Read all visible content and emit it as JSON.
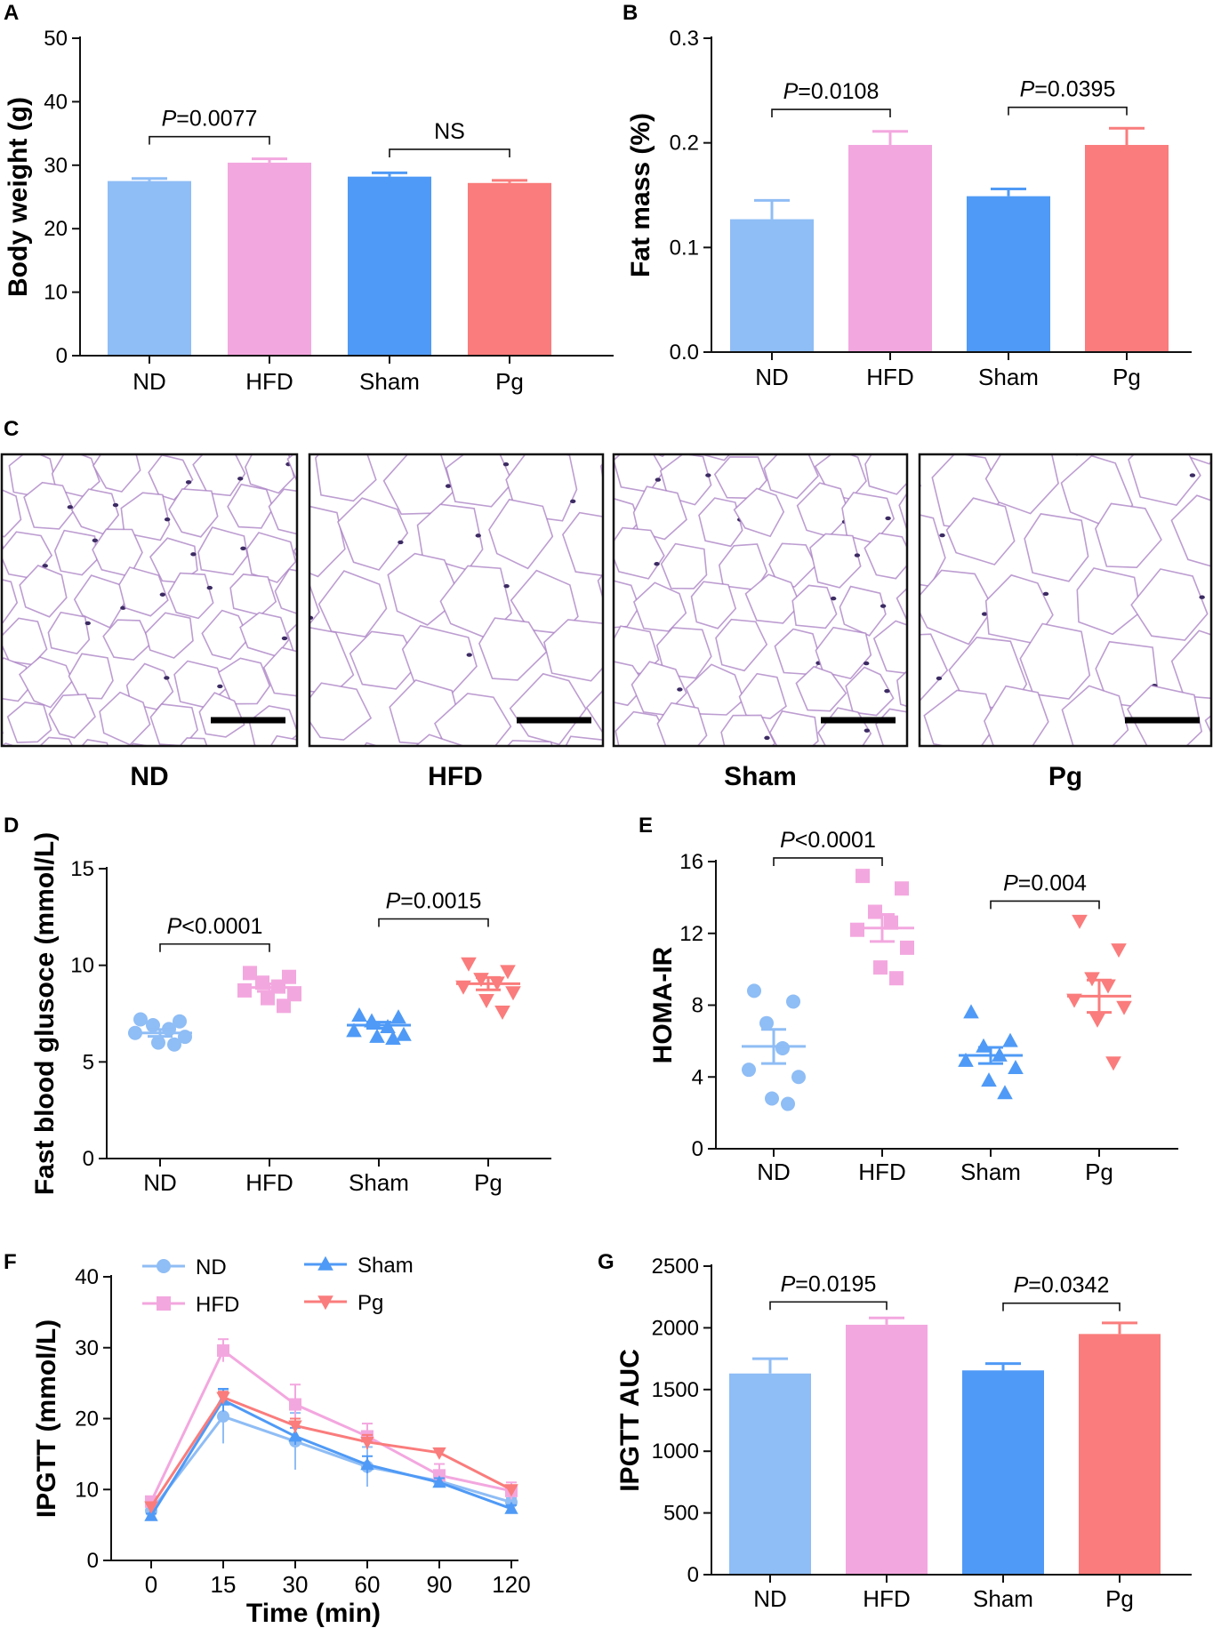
{
  "colors": {
    "ND": "#8fbdf5",
    "HFD": "#f3a7df",
    "Sham": "#4f9af6",
    "Pg": "#fa7c7c",
    "axis": "#111111",
    "stain": "#a77cc2",
    "nucleus": "#3c2b63"
  },
  "chart_data": [
    {
      "panel": "A",
      "type": "bar",
      "categories": [
        "ND",
        "HFD",
        "Sham",
        "Pg"
      ],
      "values": [
        27.5,
        30.4,
        28.2,
        27.2
      ],
      "errors": [
        0.4,
        0.6,
        0.6,
        0.4
      ],
      "ylabel": "Body weight (g)",
      "ylim": [
        0,
        50
      ],
      "yticks": [
        0,
        10,
        20,
        30,
        40,
        50
      ],
      "annotations": [
        {
          "from": 0,
          "to": 1,
          "at": 34.5,
          "prefix": "P",
          "text": "=0.0077"
        },
        {
          "from": 2,
          "to": 3,
          "at": 32.5,
          "prefix": "",
          "text": "NS"
        }
      ]
    },
    {
      "panel": "B",
      "type": "bar",
      "categories": [
        "ND",
        "HFD",
        "Sham",
        "Pg"
      ],
      "values": [
        0.127,
        0.198,
        0.149,
        0.198
      ],
      "errors": [
        0.018,
        0.013,
        0.007,
        0.016
      ],
      "ylabel": "Fat mass (%)",
      "ylim": [
        0,
        0.3
      ],
      "yticks": [
        0.0,
        0.1,
        0.2,
        0.3
      ],
      "ytick_labels": [
        "0.0",
        "0.1",
        "0.2",
        "0.3"
      ],
      "annotations": [
        {
          "from": 0,
          "to": 1,
          "at": 0.232,
          "prefix": "P",
          "text": "=0.0108"
        },
        {
          "from": 2,
          "to": 3,
          "at": 0.234,
          "prefix": "P",
          "text": "=0.0395"
        }
      ]
    },
    {
      "panel": "D",
      "type": "scatter",
      "categories": [
        "ND",
        "HFD",
        "Sham",
        "Pg"
      ],
      "markers": [
        "circle",
        "square",
        "triangle-up",
        "triangle-down"
      ],
      "points": [
        [
          7.2,
          7.1,
          6.9,
          6.7,
          6.5,
          6.3,
          6.0,
          5.9
        ],
        [
          9.6,
          9.4,
          9.1,
          8.9,
          8.7,
          8.5,
          8.3,
          7.9
        ],
        [
          7.4,
          7.3,
          7.1,
          6.8,
          6.6,
          6.4,
          6.3,
          6.2
        ],
        [
          10.1,
          9.7,
          9.3,
          9.1,
          8.9,
          8.6,
          8.2,
          7.6
        ]
      ],
      "means": [
        6.5,
        8.85,
        6.9,
        9.05
      ],
      "sems": [
        0.18,
        0.2,
        0.16,
        0.32
      ],
      "ylabel": "Fast blood glusoce (mmol/L)",
      "ylim": [
        0,
        15
      ],
      "yticks": [
        0,
        5,
        10,
        15
      ],
      "annotations": [
        {
          "from": 0,
          "to": 1,
          "at": 11.1,
          "prefix": "P",
          "text": "<0.0001"
        },
        {
          "from": 2,
          "to": 3,
          "at": 12.4,
          "prefix": "P",
          "text": "=0.0015"
        }
      ]
    },
    {
      "panel": "E",
      "type": "scatter",
      "categories": [
        "ND",
        "HFD",
        "Sham",
        "Pg"
      ],
      "markers": [
        "circle",
        "square",
        "triangle-up",
        "triangle-down"
      ],
      "points": [
        [
          8.8,
          8.2,
          7.0,
          5.6,
          4.4,
          4.0,
          2.8,
          2.5
        ],
        [
          15.2,
          14.5,
          13.2,
          12.6,
          12.2,
          11.2,
          10.1,
          9.5
        ],
        [
          7.6,
          6.0,
          5.7,
          5.2,
          4.9,
          4.5,
          3.8,
          3.1
        ],
        [
          12.7,
          11.1,
          9.5,
          9.1,
          8.3,
          7.9,
          7.2,
          4.8
        ]
      ],
      "means": [
        5.7,
        12.3,
        5.2,
        8.5
      ],
      "sems": [
        0.95,
        0.75,
        0.45,
        0.9
      ],
      "ylabel": "HOMA-IR",
      "ylim": [
        0,
        16
      ],
      "yticks": [
        0,
        4,
        8,
        12,
        16
      ],
      "annotations": [
        {
          "from": 0,
          "to": 1,
          "at": 16.2,
          "prefix": "P",
          "text": "<0.0001"
        },
        {
          "from": 2,
          "to": 3,
          "at": 13.8,
          "prefix": "P",
          "text": "=0.004"
        }
      ]
    },
    {
      "panel": "F",
      "type": "line",
      "x": [
        0,
        15,
        30,
        60,
        90,
        120
      ],
      "xticks": [
        "0",
        "15",
        "30",
        "60",
        "90",
        "120"
      ],
      "xlabel": "Time (min)",
      "ylabel": "IPGTT (mmol/L)",
      "ylim": [
        0,
        40
      ],
      "yticks": [
        0,
        10,
        20,
        30,
        40
      ],
      "series": [
        {
          "name": "ND",
          "marker": "circle",
          "values": [
            7.0,
            20.3,
            16.8,
            13.2,
            11.2,
            8.2
          ],
          "errors": [
            0.4,
            3.8,
            4.0,
            2.8,
            0.6,
            0.6
          ]
        },
        {
          "name": "HFD",
          "marker": "square",
          "values": [
            8.3,
            29.6,
            22.0,
            17.5,
            12.0,
            9.8
          ],
          "errors": [
            0.5,
            1.6,
            2.8,
            1.8,
            1.6,
            1.2
          ]
        },
        {
          "name": "Sham",
          "marker": "triangle-up",
          "values": [
            6.3,
            22.6,
            17.5,
            13.5,
            11.0,
            7.3
          ],
          "errors": [
            0.3,
            1.6,
            1.2,
            1.2,
            0.6,
            0.5
          ]
        },
        {
          "name": "Pg",
          "marker": "triangle-down",
          "values": [
            7.6,
            23.0,
            19.0,
            16.7,
            15.2,
            10.0
          ],
          "errors": [
            0.4,
            0.8,
            1.0,
            1.0,
            0.6,
            0.6
          ]
        }
      ],
      "legend": [
        "ND",
        "HFD",
        "Sham",
        "Pg"
      ]
    },
    {
      "panel": "G",
      "type": "bar",
      "categories": [
        "ND",
        "HFD",
        "Sham",
        "Pg"
      ],
      "values": [
        1630,
        2025,
        1655,
        1950
      ],
      "errors": [
        120,
        55,
        55,
        90
      ],
      "ylabel": "IPGTT AUC",
      "ylim": [
        0,
        2500
      ],
      "yticks": [
        0,
        500,
        1000,
        1500,
        2000,
        2500
      ],
      "annotations": [
        {
          "from": 0,
          "to": 1,
          "at": 2210,
          "prefix": "P",
          "text": "=0.0195"
        },
        {
          "from": 2,
          "to": 3,
          "at": 2200,
          "prefix": "P",
          "text": "=0.0342"
        }
      ]
    }
  ],
  "histology": {
    "panel": "C",
    "labels": [
      "ND",
      "HFD",
      "Sham",
      "Pg"
    ],
    "adipocyte_size_relative": [
      0.55,
      1.0,
      0.6,
      1.05
    ]
  }
}
